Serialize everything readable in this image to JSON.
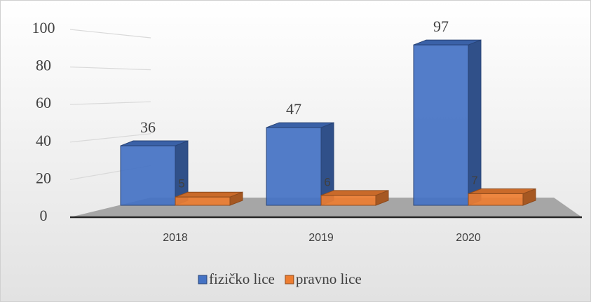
{
  "chart_data": {
    "type": "bar",
    "categories": [
      "2018",
      "2019",
      "2020"
    ],
    "series": [
      {
        "name": "fizičko lice",
        "color": "#4472c4",
        "values": [
          36,
          47,
          97
        ]
      },
      {
        "name": "pravno lice",
        "color": "#ed7d31",
        "values": [
          5,
          6,
          7
        ]
      }
    ],
    "ylim": [
      0,
      100
    ],
    "yticks": [
      0,
      20,
      40,
      60,
      80,
      100
    ],
    "grid": true,
    "legend": "bottom"
  }
}
